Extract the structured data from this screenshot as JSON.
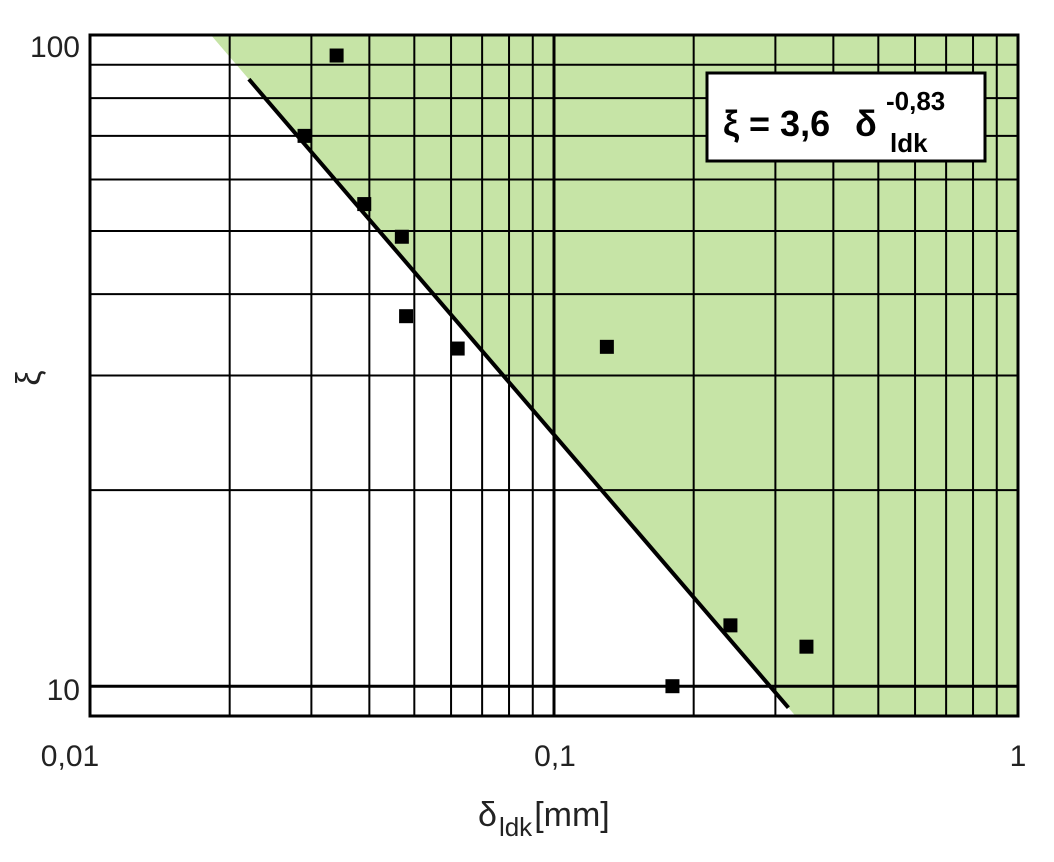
{
  "chart_data": {
    "type": "scatter",
    "x_scale": "log",
    "y_scale": "log",
    "xlim": [
      0.01,
      1
    ],
    "ylim": [
      9,
      100
    ],
    "grid": true,
    "shaded_region_color": "#c6e4a6",
    "x_ticks": [
      "0,01",
      "0,1",
      "1"
    ],
    "y_ticks": [
      "100",
      "10"
    ],
    "xlabel": {
      "main": "δ",
      "sub": "ldk",
      "unit": "[mm]"
    },
    "ylabel": "ξ",
    "annotation": {
      "lhs": "ξ = 3,6",
      "sym": "δ",
      "exp": "-0,83",
      "sub": "ldk"
    },
    "fit": {
      "a": 3.6,
      "b": -0.83,
      "x_range": [
        0.022,
        0.32
      ]
    },
    "points": [
      {
        "x": 0.034,
        "y": 93
      },
      {
        "x": 0.029,
        "y": 70
      },
      {
        "x": 0.039,
        "y": 55
      },
      {
        "x": 0.047,
        "y": 49
      },
      {
        "x": 0.048,
        "y": 37
      },
      {
        "x": 0.062,
        "y": 33
      },
      {
        "x": 0.13,
        "y": 33.2
      },
      {
        "x": 0.18,
        "y": 10
      },
      {
        "x": 0.24,
        "y": 12.4
      },
      {
        "x": 0.35,
        "y": 11.5
      }
    ]
  }
}
